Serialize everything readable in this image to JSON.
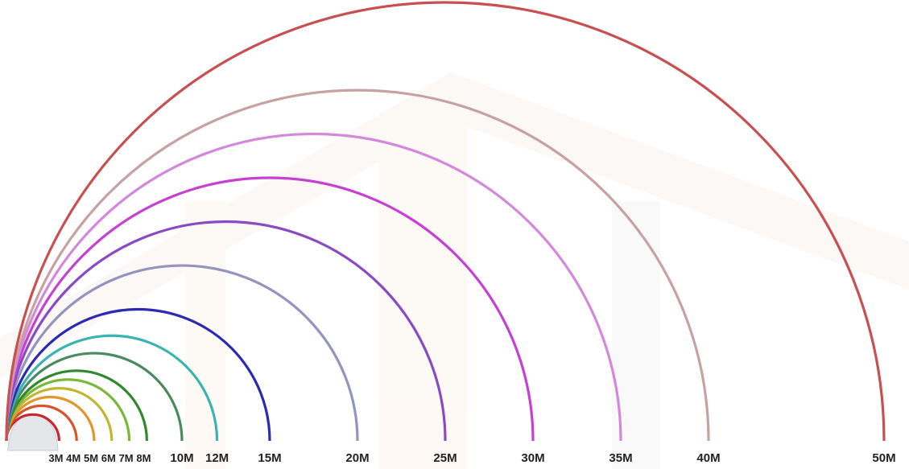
{
  "chart_data": {
    "type": "range-arcs",
    "arcs": [
      {
        "label": "3M",
        "value": 3,
        "color": "#c8282d"
      },
      {
        "label": "4M",
        "value": 4,
        "color": "#d9542a"
      },
      {
        "label": "5M",
        "value": 5,
        "color": "#e0962a"
      },
      {
        "label": "6M",
        "value": 6,
        "color": "#c2b630"
      },
      {
        "label": "7M",
        "value": 7,
        "color": "#7ab83a"
      },
      {
        "label": "8M",
        "value": 8,
        "color": "#2f8a2f"
      },
      {
        "label": "10M",
        "value": 10,
        "color": "#4a8a5e"
      },
      {
        "label": "12M",
        "value": 12,
        "color": "#3ab4b0"
      },
      {
        "label": "15M",
        "value": 15,
        "color": "#2a2ab4"
      },
      {
        "label": "20M",
        "value": 20,
        "color": "#9494c0"
      },
      {
        "label": "25M",
        "value": 25,
        "color": "#8a4ac4"
      },
      {
        "label": "30M",
        "value": 30,
        "color": "#c640d4"
      },
      {
        "label": "35M",
        "value": 35,
        "color": "#d488dc"
      },
      {
        "label": "40M",
        "value": 40,
        "color": "#c8a2a2"
      },
      {
        "label": "50M",
        "value": 50,
        "color": "#c85050"
      }
    ]
  }
}
